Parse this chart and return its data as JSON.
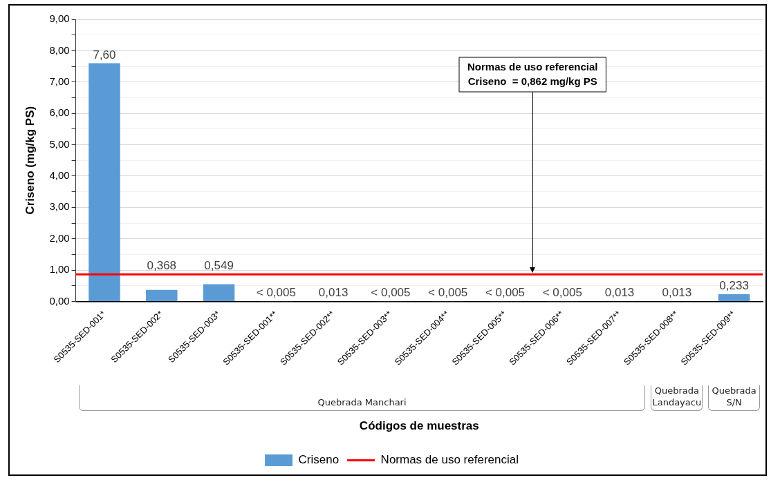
{
  "chart_data": {
    "type": "bar",
    "xlabel": "Códigos de muestras",
    "ylabel": "Criseno (mg/kg PS)",
    "categories": [
      "S0535-SED-001*",
      "S0535-SED-002*",
      "S0535-SED-003*",
      "S0535-SED-001**",
      "S0535-SED-002**",
      "S0535-SED-003**",
      "S0535-SED-004**",
      "S0535-SED-005**",
      "S0535-SED-006**",
      "S0535-SED-007**",
      "S0535-SED-008**",
      "S0535-SED-009**"
    ],
    "series": [
      {
        "name": "Criseno",
        "color": "#5b9bd5",
        "values": [
          7.6,
          0.368,
          0.549,
          0.005,
          0.013,
          0.005,
          0.005,
          0.005,
          0.005,
          0.013,
          0.013,
          0.233
        ],
        "value_labels": [
          "7,60",
          "0,368",
          "0,549",
          "< 0,005",
          "0,013",
          "< 0,005",
          "< 0,005",
          "< 0,005",
          "< 0,005",
          "0,013",
          "0,013",
          "0,233"
        ]
      }
    ],
    "ylim": [
      0,
      9
    ],
    "yticks": [
      {
        "value": 0,
        "label": "0,00"
      },
      {
        "value": 0.5,
        "label": null
      },
      {
        "value": 1,
        "label": "1,00"
      },
      {
        "value": 1.5,
        "label": null
      },
      {
        "value": 2,
        "label": "2,00"
      },
      {
        "value": 2.5,
        "label": null
      },
      {
        "value": 3,
        "label": "3,00"
      },
      {
        "value": 3.5,
        "label": null
      },
      {
        "value": 4,
        "label": "4,00"
      },
      {
        "value": 4.5,
        "label": null
      },
      {
        "value": 5,
        "label": "5,00"
      },
      {
        "value": 5.5,
        "label": null
      },
      {
        "value": 6,
        "label": "6,00"
      },
      {
        "value": 6.5,
        "label": null
      },
      {
        "value": 7,
        "label": "7,00"
      },
      {
        "value": 7.5,
        "label": null
      },
      {
        "value": 8,
        "label": "8,00"
      },
      {
        "value": 8.5,
        "label": null
      },
      {
        "value": 9,
        "label": "9,00"
      }
    ],
    "ref_lines": [
      {
        "axis": "y",
        "value": 0.862,
        "label": "Normas de uso referencial",
        "color": "#ff0000"
      }
    ],
    "annotations": [
      "Normas de uso referencial",
      "Criseno  = 0,862 mg/kg PS",
      "Quebrada Manchari",
      "Quebrada Landayacu",
      "Quebrada S/N"
    ],
    "grid": "y",
    "legend": "bottom"
  }
}
